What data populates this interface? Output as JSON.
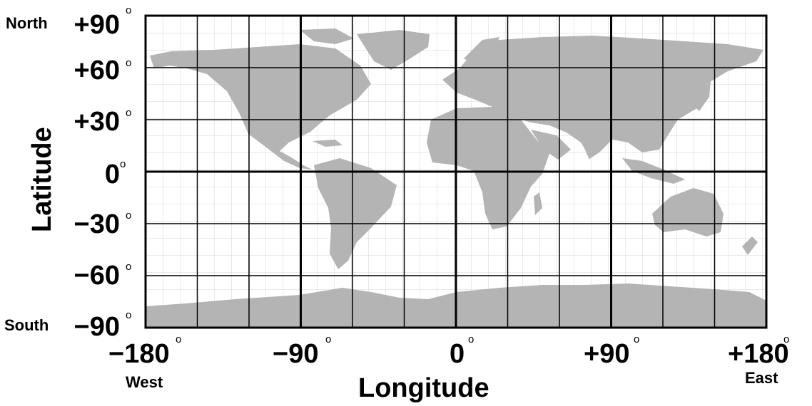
{
  "map": {
    "land_color": "#b4b4b4",
    "frame_color": "#000000",
    "lat_range": [
      -90,
      90
    ],
    "lon_range": [
      -180,
      180
    ],
    "major_grid_deg": 30,
    "minor_grid_deg": 10
  },
  "labels": {
    "north": "North",
    "south": "South",
    "west": "West",
    "east": "East",
    "latitude_title": "Latitude",
    "longitude_title": "Longitude",
    "lat_ticks": [
      "+90",
      "+60",
      "+30",
      "0",
      "−30",
      "−60",
      "−90"
    ],
    "lon_ticks": [
      "−180",
      "−90",
      "0",
      "+90",
      "+180"
    ],
    "degree_symbol": "o"
  }
}
